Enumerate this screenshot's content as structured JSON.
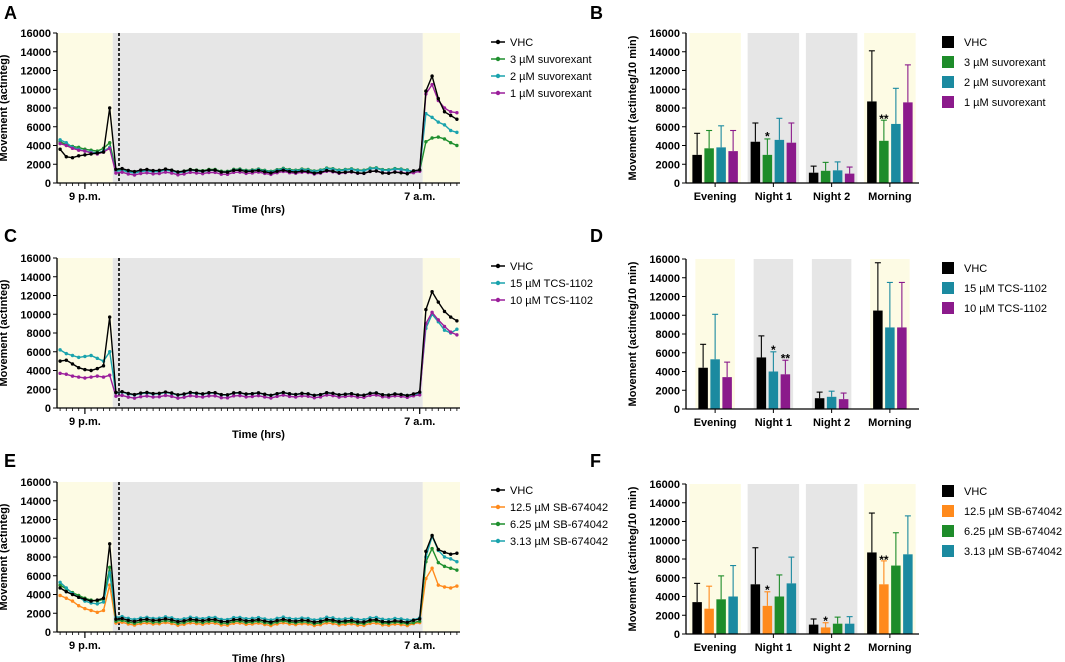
{
  "colors": {
    "vhc": "#000000",
    "green": "#1f8f2e",
    "teal": "#1aa3ad",
    "purple": "#9b1f9b",
    "orange": "#ff8a1c",
    "teal_bar": "#1b8aa0",
    "purple_bar": "#8b1a8b",
    "green_bar": "#1e8c2a",
    "yellow_bg": "#fdfbe4",
    "gray_bg": "#e6e6e6"
  },
  "chart_data": [
    {
      "panel": "A",
      "type": "line",
      "xlabel": "Time (hrs)",
      "ylabel": "Movement (actinteg)",
      "ylim": [
        0,
        16000
      ],
      "yticks": [
        0,
        2000,
        4000,
        6000,
        8000,
        10000,
        12000,
        14000,
        16000
      ],
      "xticks": [
        {
          "pos": 4,
          "label": "9 p.m."
        },
        {
          "pos": 58,
          "label": "7 a.m."
        }
      ],
      "n_points": 65,
      "lights_off": 8.5,
      "dashed_line": 9.5,
      "lights_on": 58.5,
      "series": [
        {
          "name": "VHC",
          "color_key": "vhc",
          "pre": [
            3600,
            2800,
            2700,
            2900,
            3000,
            3100,
            3200,
            3300,
            8000
          ],
          "mid": [
            1400,
            1100
          ],
          "post": [
            1300,
            1400,
            9800,
            11400,
            9000,
            7600,
            7200,
            6800
          ]
        },
        {
          "name": "3 µM suvorexant",
          "color_key": "green",
          "pre": [
            4400,
            4100,
            3900,
            3800,
            3600,
            3500,
            3400,
            3700,
            4300
          ],
          "mid": [
            1300,
            1500
          ],
          "post": [
            1200,
            1300,
            4400,
            4800,
            4900,
            4700,
            4300,
            4000
          ]
        },
        {
          "name": "2 µM suvorexant",
          "color_key": "teal",
          "pre": [
            4600,
            4300,
            3800,
            3600,
            3400,
            3300,
            3200,
            3400,
            3800
          ],
          "mid": [
            1200,
            1450
          ],
          "post": [
            1250,
            1350,
            7400,
            7000,
            6500,
            6200,
            5600,
            5400
          ]
        },
        {
          "name": "1 µM suvorexant",
          "color_key": "purple",
          "pre": [
            4200,
            4000,
            3700,
            3500,
            3400,
            3200,
            3100,
            3300,
            3700
          ],
          "mid": [
            1000,
            1150
          ],
          "post": [
            1100,
            1250,
            9500,
            10500,
            8800,
            8000,
            7600,
            7500
          ]
        }
      ]
    },
    {
      "panel": "B",
      "type": "bar",
      "ylabel": "Movement (actinteg/10 min)",
      "ylim": [
        0,
        16000
      ],
      "yticks": [
        0,
        2000,
        4000,
        6000,
        8000,
        10000,
        12000,
        14000,
        16000
      ],
      "categories": [
        "Evening",
        "Night 1",
        "Night 2",
        "Morning"
      ],
      "backgrounds": [
        "yellow",
        "gray",
        "gray",
        "yellow"
      ],
      "series": [
        {
          "name": "VHC",
          "color_key": "vhc",
          "values": [
            3000,
            4400,
            1100,
            8700
          ],
          "errors": [
            2300,
            2000,
            700,
            5400
          ]
        },
        {
          "name": "3 µM suvorexant",
          "color_key": "green_bar",
          "values": [
            3700,
            3000,
            1300,
            4500
          ],
          "errors": [
            1900,
            1700,
            900,
            2200
          ]
        },
        {
          "name": "2 µM suvorexant",
          "color_key": "teal_bar",
          "values": [
            3800,
            4600,
            1350,
            6300
          ],
          "errors": [
            2300,
            2300,
            900,
            3800
          ]
        },
        {
          "name": "1 µM suvorexant",
          "color_key": "purple_bar",
          "values": [
            3400,
            4300,
            1000,
            8600
          ],
          "errors": [
            2200,
            2100,
            700,
            4000
          ]
        }
      ],
      "annotations": [
        {
          "text": "*",
          "cat": 1,
          "series": 1,
          "y": 4950
        },
        {
          "text": "**",
          "cat": 3,
          "series": 1,
          "y": 6850
        }
      ]
    },
    {
      "panel": "C",
      "type": "line",
      "xlabel": "Time (hrs)",
      "ylabel": "Movement (actinteg)",
      "ylim": [
        0,
        16000
      ],
      "yticks": [
        0,
        2000,
        4000,
        6000,
        8000,
        10000,
        12000,
        14000,
        16000
      ],
      "xticks": [
        {
          "pos": 4,
          "label": "9 p.m."
        },
        {
          "pos": 58,
          "label": "7 a.m."
        }
      ],
      "n_points": 65,
      "lights_off": 8.5,
      "dashed_line": 9.5,
      "lights_on": 58.5,
      "series": [
        {
          "name": "VHC",
          "color_key": "vhc",
          "pre": [
            5000,
            5100,
            4700,
            4300,
            4100,
            4000,
            4200,
            4500,
            9700
          ],
          "mid": [
            1600,
            1450
          ],
          "post": [
            1500,
            1700,
            10500,
            12400,
            11300,
            10300,
            9700,
            9300
          ]
        },
        {
          "name": "15 µM TCS-1102",
          "color_key": "teal",
          "pre": [
            6200,
            5800,
            5600,
            5400,
            5500,
            5600,
            5300,
            5000,
            6000
          ],
          "mid": [
            1550,
            1450
          ],
          "post": [
            1400,
            1600,
            8500,
            10000,
            9200,
            8300,
            8000,
            8400
          ]
        },
        {
          "name": "10 µM TCS-1102",
          "color_key": "purple",
          "pre": [
            3700,
            3600,
            3400,
            3300,
            3200,
            3300,
            3400,
            3300,
            3500
          ],
          "mid": [
            1200,
            1250
          ],
          "post": [
            1300,
            1400,
            9000,
            10200,
            9400,
            8700,
            8100,
            7800
          ]
        }
      ]
    },
    {
      "panel": "D",
      "type": "bar",
      "ylabel": "Movement (actinteg/10 min)",
      "ylim": [
        0,
        16000
      ],
      "yticks": [
        0,
        2000,
        4000,
        6000,
        8000,
        10000,
        12000,
        14000,
        16000
      ],
      "categories": [
        "Evening",
        "Night 1",
        "Night 2",
        "Morning"
      ],
      "backgrounds": [
        "yellow",
        "gray",
        "gray",
        "yellow"
      ],
      "series": [
        {
          "name": "VHC",
          "color_key": "vhc",
          "values": [
            4400,
            5500,
            1150,
            10500
          ],
          "errors": [
            2500,
            2300,
            650,
            5100
          ]
        },
        {
          "name": "15 µM TCS-1102",
          "color_key": "teal_bar",
          "values": [
            5300,
            4000,
            1300,
            8700
          ],
          "errors": [
            4800,
            2100,
            600,
            4800
          ]
        },
        {
          "name": "10 µM TCS-1102",
          "color_key": "purple_bar",
          "values": [
            3400,
            3700,
            1050,
            8700
          ],
          "errors": [
            1600,
            1500,
            650,
            4800
          ]
        }
      ],
      "annotations": [
        {
          "text": "*",
          "cat": 1,
          "series": 1,
          "y": 6300
        },
        {
          "text": "**",
          "cat": 1,
          "series": 2,
          "y": 5400
        }
      ]
    },
    {
      "panel": "E",
      "type": "line",
      "xlabel": "Time (hrs)",
      "ylabel": "Movement (actinteg)",
      "ylim": [
        0,
        16000
      ],
      "yticks": [
        0,
        2000,
        4000,
        6000,
        8000,
        10000,
        12000,
        14000,
        16000
      ],
      "xticks": [
        {
          "pos": 4,
          "label": "9 p.m."
        },
        {
          "pos": 58,
          "label": "7 a.m."
        }
      ],
      "n_points": 65,
      "lights_off": 8.5,
      "dashed_line": 9.5,
      "lights_on": 58.5,
      "series": [
        {
          "name": "VHC",
          "color_key": "vhc",
          "pre": [
            4700,
            4300,
            4000,
            3700,
            3500,
            3300,
            3400,
            3600,
            9400
          ],
          "mid": [
            1300,
            1150
          ],
          "post": [
            1250,
            1400,
            8600,
            10300,
            8800,
            8500,
            8300,
            8400
          ]
        },
        {
          "name": "12.5 µM SB-674042",
          "color_key": "orange",
          "pre": [
            3900,
            3600,
            3300,
            2800,
            2500,
            2300,
            2100,
            2300,
            5000
          ],
          "mid": [
            900,
            800
          ],
          "post": [
            900,
            1000,
            5700,
            6800,
            5000,
            4800,
            4700,
            4900
          ]
        },
        {
          "name": "6.25 µM SB-674042",
          "color_key": "green",
          "pre": [
            5000,
            4600,
            4200,
            3900,
            3600,
            3400,
            3300,
            3500,
            6900
          ],
          "mid": [
            1100,
            1000
          ],
          "post": [
            1000,
            1150,
            7500,
            8900,
            7400,
            7000,
            6800,
            6600
          ]
        },
        {
          "name": "3.13 µM SB-674042",
          "color_key": "teal",
          "pre": [
            5300,
            4700,
            4100,
            3700,
            3300,
            3100,
            3000,
            3200,
            6300
          ],
          "mid": [
            1500,
            1400
          ],
          "post": [
            1300,
            1500,
            8000,
            10200,
            8700,
            8000,
            7800,
            7500
          ]
        }
      ]
    },
    {
      "panel": "F",
      "type": "bar",
      "ylabel": "Movement (actinteg/10 min)",
      "ylim": [
        0,
        16000
      ],
      "yticks": [
        0,
        2000,
        4000,
        6000,
        8000,
        10000,
        12000,
        14000,
        16000
      ],
      "categories": [
        "Evening",
        "Night 1",
        "Night 2",
        "Morning"
      ],
      "backgrounds": [
        "yellow",
        "gray",
        "gray",
        "yellow"
      ],
      "series": [
        {
          "name": "VHC",
          "color_key": "vhc",
          "values": [
            3400,
            5300,
            1000,
            8700
          ],
          "errors": [
            2000,
            3900,
            600,
            4200
          ]
        },
        {
          "name": "12.5 µM SB-674042",
          "color_key": "orange",
          "values": [
            2700,
            3000,
            700,
            5300
          ],
          "errors": [
            2400,
            1500,
            500,
            2500
          ]
        },
        {
          "name": "6.25 µM SB-674042",
          "color_key": "green_bar",
          "values": [
            3700,
            4000,
            1100,
            7300
          ],
          "errors": [
            2500,
            2300,
            700,
            3500
          ]
        },
        {
          "name": "3.13 µM SB-674042",
          "color_key": "teal_bar",
          "values": [
            4000,
            5400,
            1100,
            8500
          ],
          "errors": [
            3300,
            2800,
            750,
            4100
          ]
        }
      ],
      "annotations": [
        {
          "text": "*",
          "cat": 1,
          "series": 1,
          "y": 4700
        },
        {
          "text": "*",
          "cat": 2,
          "series": 1,
          "y": 1400
        },
        {
          "text": "**",
          "cat": 3,
          "series": 1,
          "y": 7900
        }
      ]
    }
  ]
}
